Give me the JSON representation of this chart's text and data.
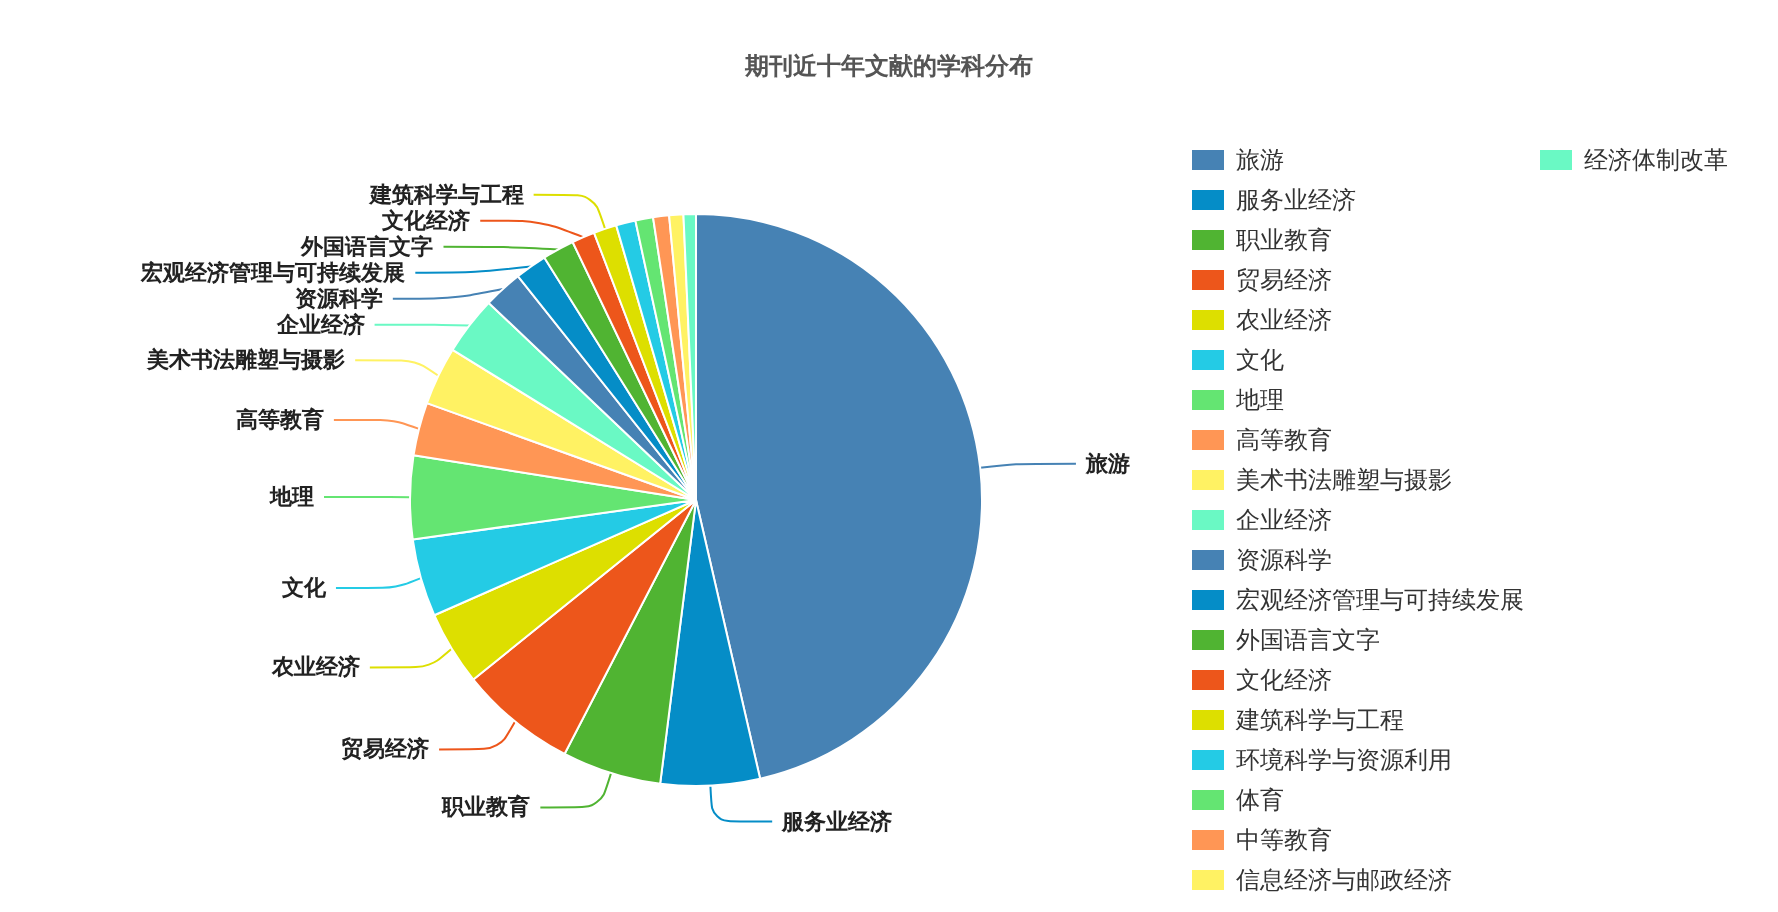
{
  "chart_data": {
    "type": "pie",
    "title": "期刊近十年文献的学科分布",
    "categories": [
      "旅游",
      "服务业经济",
      "职业教育",
      "贸易经济",
      "农业经济",
      "文化",
      "地理",
      "高等教育",
      "美术书法雕塑与摄影",
      "企业经济",
      "资源科学",
      "宏观经济管理与可持续发展",
      "外国语言文字",
      "文化经济",
      "建筑科学与工程",
      "环境科学与资源利用",
      "体育",
      "中等教育",
      "信息经济与邮政经济",
      "经济体制改革"
    ],
    "values": [
      46.4,
      5.6,
      5.6,
      6.6,
      4.2,
      4.4,
      4.7,
      3.0,
      3.3,
      3.3,
      2.2,
      1.8,
      1.8,
      1.3,
      1.3,
      1.1,
      1.0,
      0.9,
      0.8,
      0.7
    ],
    "colors": [
      "#4682b4",
      "#058dc7",
      "#50b432",
      "#ed561b",
      "#dddf00",
      "#24cbe5",
      "#64e572",
      "#ff9655",
      "#fff263",
      "#6af9c4",
      "#4682b4",
      "#058dc7",
      "#50b432",
      "#ed561b",
      "#dddf00",
      "#24cbe5",
      "#64e572",
      "#ff9655",
      "#fff263",
      "#6af9c4"
    ],
    "legend": "right"
  }
}
